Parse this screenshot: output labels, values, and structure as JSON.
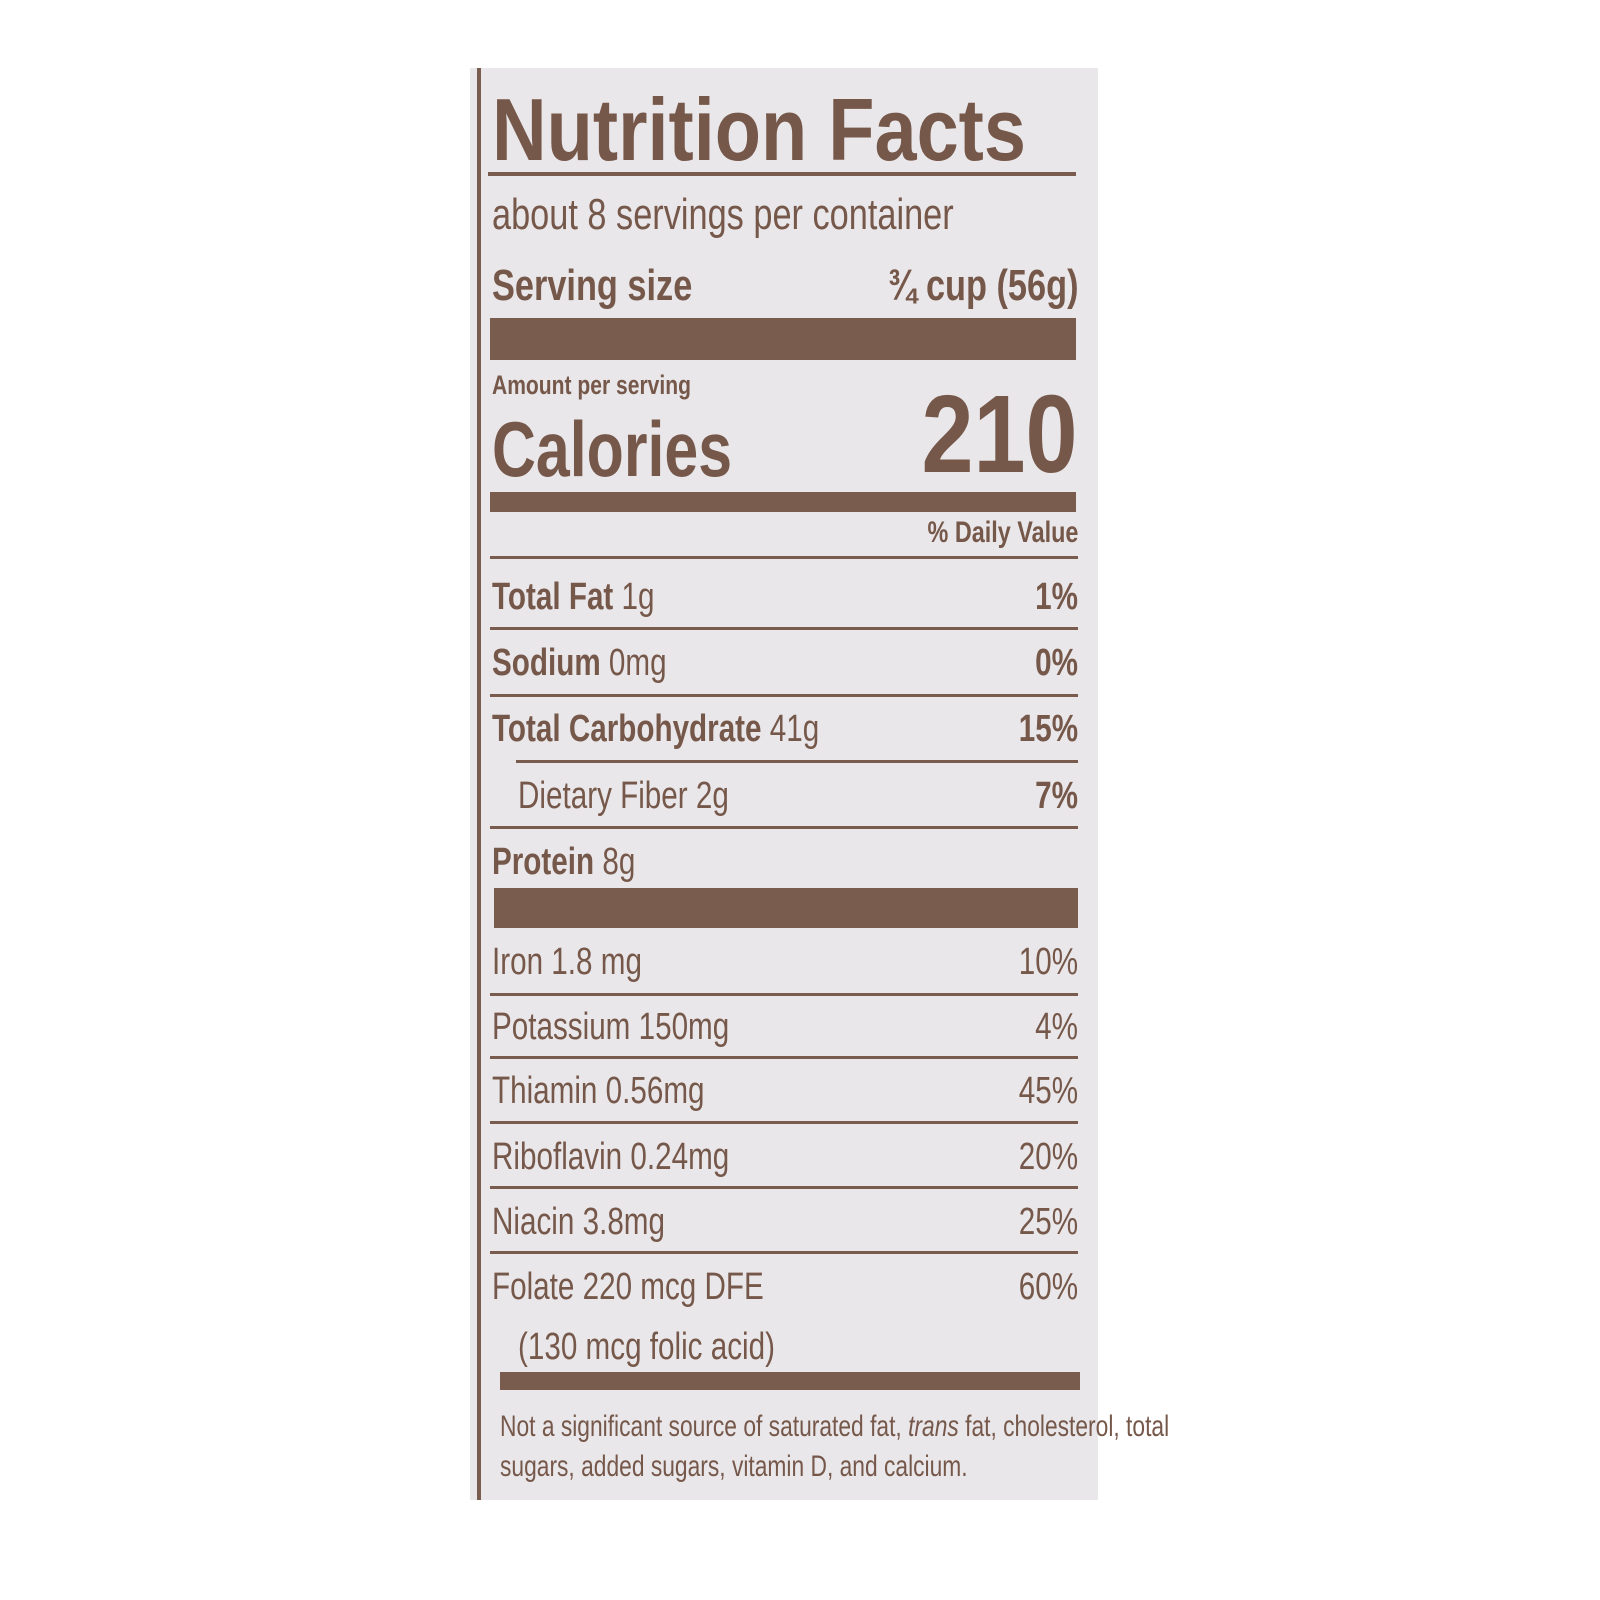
{
  "label": {
    "title": "Nutrition Facts",
    "servings_per_container": "about 8 servings per container",
    "serving_size_label": "Serving size",
    "serving_size_value": "¾ cup (56g)",
    "amount_per_serving": "Amount per serving",
    "calories_label": "Calories",
    "calories_value": "210",
    "daily_value_header": "% Daily Value",
    "nutrients": [
      {
        "name": "Total Fat",
        "amount": "1g",
        "dv": "1%"
      },
      {
        "name": "Sodium",
        "amount": "0mg",
        "dv": "0%"
      },
      {
        "name": "Total Carbohydrate",
        "amount": "41g",
        "dv": "15%"
      },
      {
        "name": "Dietary Fiber 2g",
        "dv": "7%"
      },
      {
        "name": "Protein",
        "amount": "8g"
      }
    ],
    "vitamins": [
      {
        "text": "Iron 1.8 mg",
        "dv": "10%"
      },
      {
        "text": "Potassium 150mg",
        "dv": "4%"
      },
      {
        "text": "Thiamin 0.56mg",
        "dv": "45%"
      },
      {
        "text": "Riboflavin 0.24mg",
        "dv": "20%"
      },
      {
        "text": "Niacin 3.8mg",
        "dv": "25%"
      },
      {
        "text": "Folate 220 mcg DFE",
        "dv": "60%",
        "sub": "(130 mcg folic acid)"
      }
    ],
    "footnote_part1": "Not a significant source of saturated fat, ",
    "footnote_italic": "trans",
    "footnote_part2": " fat, cholesterol, total",
    "footnote_line2": "sugars, added sugars, vitamin D, and calcium.",
    "ink_color": "#7a5c4e",
    "paper_color": "#e9e7ea"
  }
}
